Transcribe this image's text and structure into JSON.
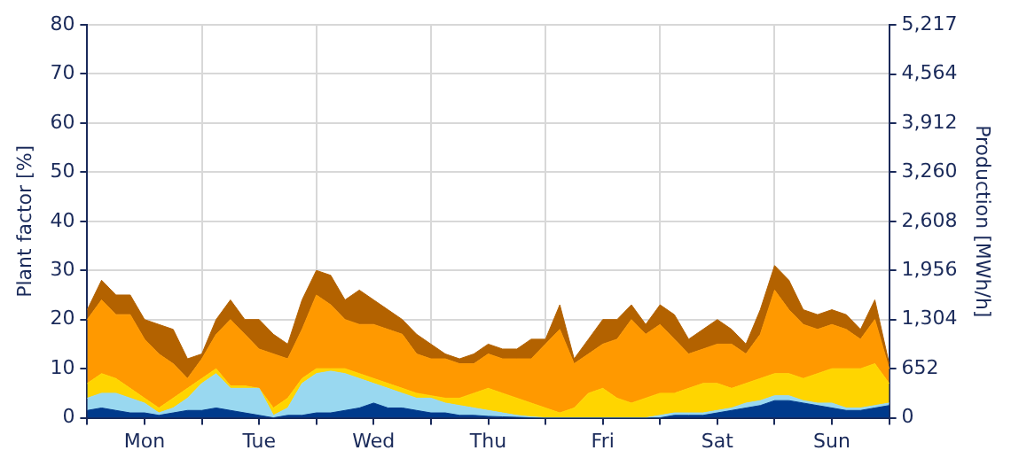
{
  "chart_data": {
    "type": "area",
    "stacked": true,
    "ylabel": "Plant factor [%]",
    "y2label": "Production [MWh/h]",
    "categories": [
      null,
      null,
      null,
      null,
      "Mon",
      null,
      null,
      null,
      null,
      null,
      null,
      null,
      "Tue",
      null,
      null,
      null,
      null,
      null,
      null,
      null,
      "Wed",
      null,
      null,
      null,
      null,
      null,
      null,
      null,
      "Thu",
      null,
      null,
      null,
      null,
      null,
      null,
      null,
      "Fri",
      null,
      null,
      null,
      null,
      null,
      null,
      null,
      "Sat",
      null,
      null,
      null,
      null,
      null,
      null,
      null,
      "Sun",
      null,
      null,
      null,
      null
    ],
    "ylim": [
      0,
      80
    ],
    "yticks": [
      0,
      10,
      20,
      30,
      40,
      50,
      60,
      70,
      80
    ],
    "y2lim": [
      0,
      5217
    ],
    "y2ticks": [
      0,
      652,
      {
        "value": 1304,
        "label": "1,304"
      },
      {
        "value": 1956,
        "label": "1,956"
      },
      {
        "value": 2608,
        "label": "2,608"
      },
      {
        "value": 3260,
        "label": "3,260"
      },
      {
        "value": 3912,
        "label": "3,912"
      },
      {
        "value": 4564,
        "label": "4,564"
      },
      {
        "value": 5217,
        "label": "5,217"
      }
    ],
    "grid": true,
    "legend": false,
    "series": [
      {
        "color": "#003a8c",
        "values": [
          1.5,
          2,
          1.5,
          1,
          1,
          0.5,
          1,
          1.5,
          1.5,
          2,
          1.5,
          1,
          0.5,
          0,
          0.5,
          0.5,
          1,
          1,
          1.5,
          2,
          3,
          2,
          2,
          1.5,
          1,
          1,
          0.5,
          0.5,
          0.3,
          0.2,
          0.1,
          0,
          0,
          0,
          0,
          0,
          0,
          0,
          0,
          0,
          0,
          0.5,
          0.5,
          0.5,
          1,
          1.5,
          2,
          2.5,
          3.5,
          3.5,
          3,
          2.5,
          2,
          1.5,
          1.5,
          2,
          2.5
        ]
      },
      {
        "color": "#99d8f0",
        "values": [
          2.5,
          3,
          3.5,
          3,
          2,
          0.5,
          1,
          2.5,
          5.5,
          7,
          4.5,
          5,
          5.5,
          0.5,
          1.5,
          6.5,
          8,
          8.5,
          7.5,
          6,
          4,
          4,
          3,
          2.5,
          3,
          2,
          2,
          1.5,
          1.2,
          0.8,
          0.4,
          0.2,
          0,
          0,
          0,
          0,
          0,
          0,
          0,
          0,
          0.5,
          0.5,
          0.5,
          0.5,
          0.5,
          0.5,
          1,
          1,
          1,
          1,
          0.5,
          0.5,
          1,
          0.5,
          0.5,
          0.5,
          0.5
        ]
      },
      {
        "color": "#ffd500",
        "values": [
          3,
          4,
          3,
          2,
          1,
          1,
          2,
          2,
          1,
          1,
          0.5,
          0.5,
          0,
          1.5,
          2,
          1,
          1,
          0.5,
          1,
          1,
          1,
          1,
          1,
          1,
          0.5,
          1,
          1.5,
          3,
          4.5,
          4,
          3.5,
          2.8,
          2,
          1,
          2,
          5,
          6,
          4,
          3,
          4,
          4.5,
          4,
          5,
          6,
          5.5,
          4,
          4,
          4.5,
          4.5,
          4.5,
          4.5,
          6,
          7,
          8,
          8,
          8.5,
          4
        ]
      },
      {
        "color": "#ff9900",
        "values": [
          13,
          15,
          13,
          15,
          12,
          11,
          7,
          2,
          4,
          7,
          13.5,
          10.5,
          8,
          11,
          8,
          10,
          15,
          13,
          10,
          10,
          11,
          11,
          11,
          8,
          7.5,
          8,
          7,
          6,
          7,
          7,
          8,
          9,
          13,
          17,
          9,
          8,
          9,
          12,
          17,
          13,
          14,
          11,
          7,
          7,
          8,
          9,
          6,
          9,
          17,
          13,
          11,
          9,
          9,
          8,
          6,
          9,
          3
        ]
      },
      {
        "color": "#b36200",
        "values": [
          2,
          4,
          4,
          4,
          4,
          6,
          7,
          4,
          1,
          3,
          4,
          3,
          6,
          4,
          3,
          6,
          5,
          6,
          4,
          7,
          5,
          4,
          3,
          4,
          3,
          1,
          1,
          2,
          2,
          2,
          2,
          4,
          1,
          5,
          1,
          3,
          5,
          4,
          3,
          2,
          4,
          5,
          3,
          4,
          5,
          3,
          2,
          5,
          5,
          6,
          3,
          3,
          3,
          3,
          2,
          4,
          1
        ]
      }
    ]
  }
}
